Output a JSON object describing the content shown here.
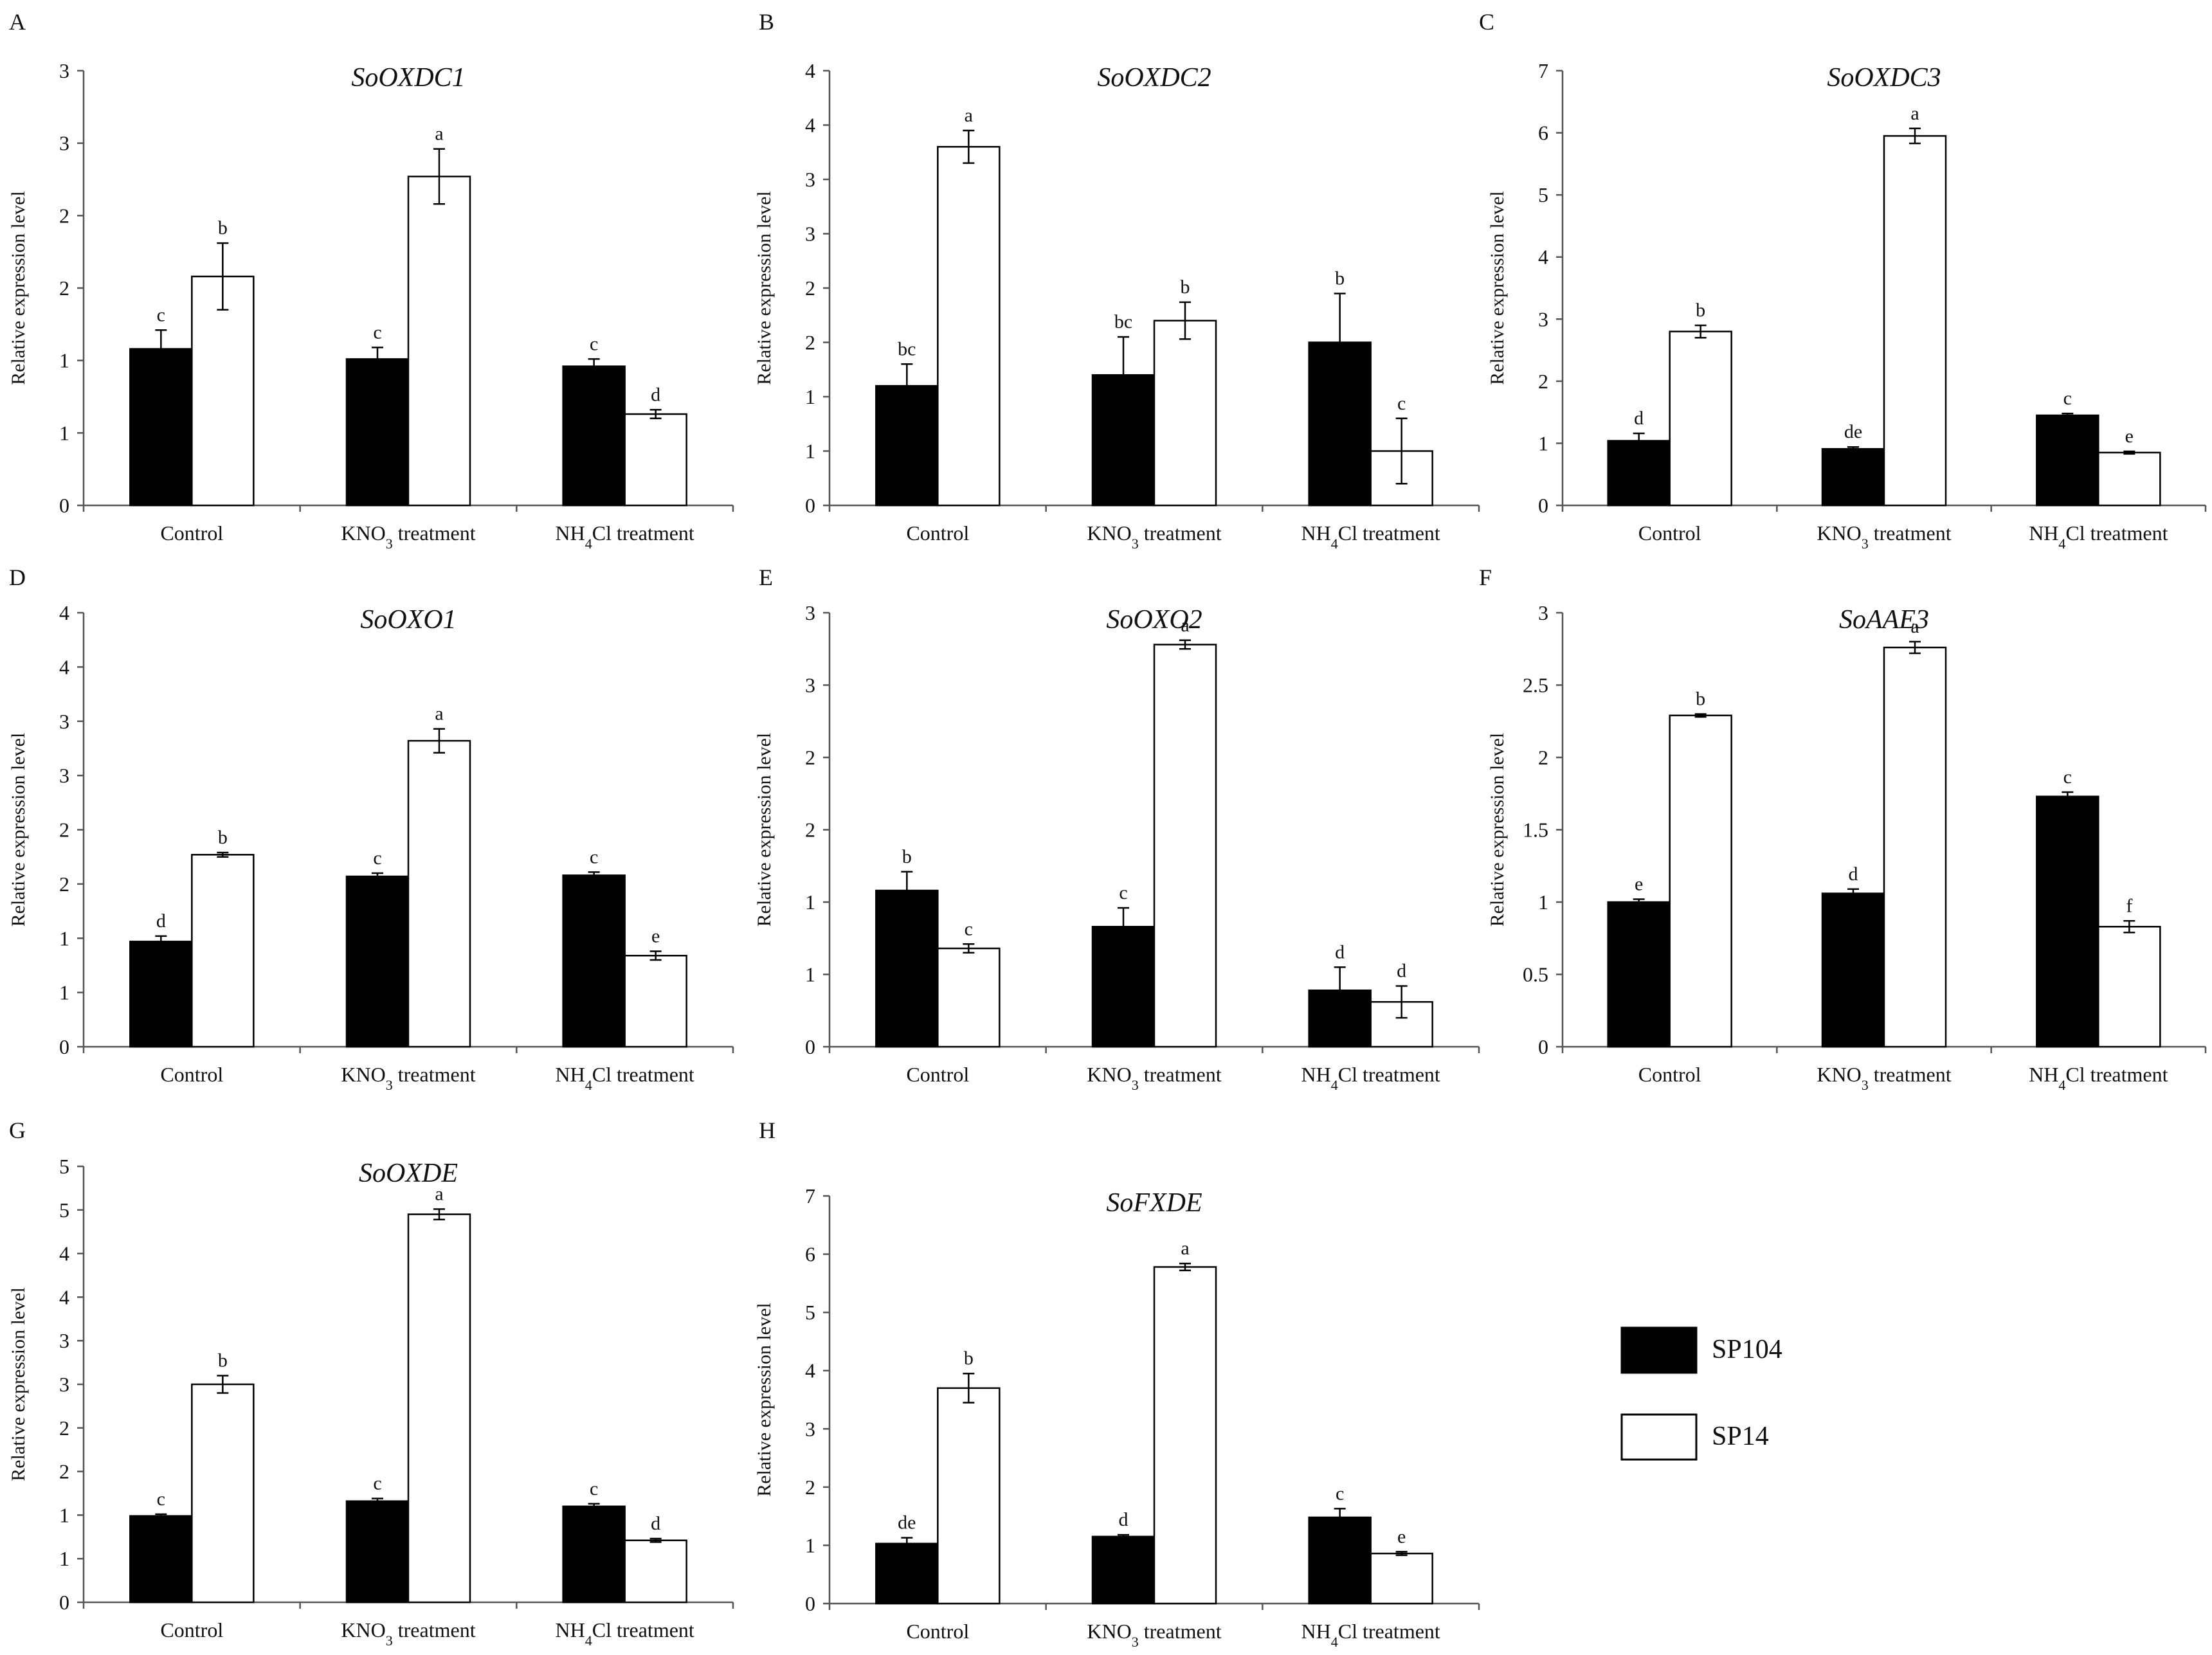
{
  "legend": {
    "series": [
      {
        "name": "SP104",
        "color": "#000000"
      },
      {
        "name": "SP14",
        "color": "#ffffff"
      }
    ]
  },
  "chart_data": [
    {
      "panel": "A",
      "type": "bar",
      "title": "SoOXDC1",
      "ylabel": "Relative expression level",
      "ylim": [
        0,
        3
      ],
      "yticks": [
        "0",
        "1",
        "1",
        "2",
        "2",
        "3",
        "3"
      ],
      "categories": [
        [
          "Control"
        ],
        [
          "KNO",
          "3",
          " treatment"
        ],
        [
          "NH",
          "4",
          "Cl treatment"
        ]
      ],
      "series": [
        {
          "name": "SP104",
          "values": [
            1.08,
            1.01,
            0.96
          ],
          "errors": [
            0.13,
            0.08,
            0.05
          ],
          "labels": [
            "c",
            "c",
            "c"
          ]
        },
        {
          "name": "SP14",
          "values": [
            1.58,
            2.27,
            0.63
          ],
          "errors": [
            0.23,
            0.19,
            0.03
          ],
          "labels": [
            "b",
            "a",
            "d"
          ]
        }
      ]
    },
    {
      "panel": "B",
      "type": "bar",
      "title": "SoOXDC2",
      "ylabel": "Relative expression level",
      "ylim": [
        0,
        4
      ],
      "yticks": [
        "0",
        "1",
        "1",
        "2",
        "2",
        "3",
        "3",
        "4",
        "4"
      ],
      "categories": [
        [
          "Control"
        ],
        [
          "KNO",
          "3",
          " treatment"
        ],
        [
          "NH",
          "4",
          "Cl treatment"
        ]
      ],
      "series": [
        {
          "name": "SP104",
          "values": [
            1.1,
            1.2,
            1.5
          ],
          "errors": [
            0.2,
            0.35,
            0.45
          ],
          "labels": [
            "bc",
            "bc",
            "b"
          ]
        },
        {
          "name": "SP14",
          "values": [
            3.3,
            1.7,
            0.5
          ],
          "errors": [
            0.15,
            0.17,
            0.3
          ],
          "labels": [
            "a",
            "b",
            "c"
          ]
        }
      ]
    },
    {
      "panel": "C",
      "type": "bar",
      "title": "SoOXDC3",
      "ylabel": "Relative expression level",
      "ylim": [
        0,
        7
      ],
      "yticks": [
        "0",
        "1",
        "2",
        "3",
        "4",
        "5",
        "6",
        "7"
      ],
      "categories": [
        [
          "Control"
        ],
        [
          "KNO",
          "3",
          " treatment"
        ],
        [
          "NH",
          "4",
          "Cl treatment"
        ]
      ],
      "series": [
        {
          "name": "SP104",
          "values": [
            1.04,
            0.91,
            1.45
          ],
          "errors": [
            0.12,
            0.03,
            0.03
          ],
          "labels": [
            "d",
            "de",
            "c"
          ]
        },
        {
          "name": "SP14",
          "values": [
            2.8,
            5.95,
            0.85
          ],
          "errors": [
            0.1,
            0.12,
            0.02
          ],
          "labels": [
            "b",
            "a",
            "e"
          ]
        }
      ]
    },
    {
      "panel": "D",
      "type": "bar",
      "title": "SoOXO1",
      "ylabel": "Relative expression level",
      "ylim": [
        0,
        4
      ],
      "yticks": [
        "0",
        "1",
        "1",
        "2",
        "2",
        "3",
        "3",
        "4",
        "4"
      ],
      "categories": [
        [
          "Control"
        ],
        [
          "KNO",
          "3",
          " treatment"
        ],
        [
          "NH",
          "4",
          "Cl treatment"
        ]
      ],
      "series": [
        {
          "name": "SP104",
          "values": [
            0.97,
            1.57,
            1.58
          ],
          "errors": [
            0.05,
            0.03,
            0.03
          ],
          "labels": [
            "d",
            "c",
            "c"
          ]
        },
        {
          "name": "SP14",
          "values": [
            1.77,
            2.82,
            0.84
          ],
          "errors": [
            0.02,
            0.11,
            0.04
          ],
          "labels": [
            "b",
            "a",
            "e"
          ]
        }
      ]
    },
    {
      "panel": "E",
      "type": "bar",
      "title": "SoOXO2",
      "ylabel": "Relative expression level",
      "ylim": [
        0,
        3
      ],
      "yticks": [
        "0",
        "1",
        "1",
        "2",
        "2",
        "3",
        "3"
      ],
      "categories": [
        [
          "Control"
        ],
        [
          "KNO",
          "3",
          " treatment"
        ],
        [
          "NH",
          "4",
          "Cl treatment"
        ]
      ],
      "series": [
        {
          "name": "SP104",
          "values": [
            1.08,
            0.83,
            0.39
          ],
          "errors": [
            0.13,
            0.13,
            0.16
          ],
          "labels": [
            "b",
            "c",
            "d"
          ]
        },
        {
          "name": "SP14",
          "values": [
            0.68,
            2.78,
            0.31
          ],
          "errors": [
            0.03,
            0.03,
            0.11
          ],
          "labels": [
            "c",
            "a",
            "d"
          ]
        }
      ]
    },
    {
      "panel": "F",
      "type": "bar",
      "title": "SoAAE3",
      "ylabel": "Relative expression level",
      "ylim": [
        0,
        3
      ],
      "yticks": [
        "0",
        "0.5",
        "1",
        "1.5",
        "2",
        "2.5",
        "3"
      ],
      "categories": [
        [
          "Control"
        ],
        [
          "KNO",
          "3",
          " treatment"
        ],
        [
          "NH",
          "4",
          "Cl treatment"
        ]
      ],
      "series": [
        {
          "name": "SP104",
          "values": [
            1.0,
            1.06,
            1.73
          ],
          "errors": [
            0.02,
            0.03,
            0.03
          ],
          "labels": [
            "e",
            "d",
            "c"
          ]
        },
        {
          "name": "SP14",
          "values": [
            2.29,
            2.76,
            0.83
          ],
          "errors": [
            0.01,
            0.04,
            0.04
          ],
          "labels": [
            "b",
            "a",
            "f"
          ]
        }
      ]
    },
    {
      "panel": "G",
      "type": "bar",
      "title": "SoOXDE",
      "ylabel": "Relative expression level",
      "ylim": [
        0,
        5
      ],
      "yticks": [
        "0",
        "1",
        "1",
        "2",
        "2",
        "3",
        "3",
        "4",
        "4",
        "5",
        "5"
      ],
      "categories": [
        [
          "Control"
        ],
        [
          "KNO",
          "3",
          " treatment"
        ],
        [
          "NH",
          "4",
          "Cl treatment"
        ]
      ],
      "series": [
        {
          "name": "SP104",
          "values": [
            0.99,
            1.16,
            1.1
          ],
          "errors": [
            0.02,
            0.03,
            0.03
          ],
          "labels": [
            "c",
            "c",
            "c"
          ]
        },
        {
          "name": "SP14",
          "values": [
            2.5,
            4.45,
            0.71
          ],
          "errors": [
            0.1,
            0.06,
            0.02
          ],
          "labels": [
            "b",
            "a",
            "d"
          ]
        }
      ]
    },
    {
      "panel": "H",
      "type": "bar",
      "title": "SoFXDE",
      "ylabel": "Relative expression level",
      "ylim": [
        0,
        7
      ],
      "yticks": [
        "0",
        "1",
        "2",
        "3",
        "4",
        "5",
        "6",
        "7"
      ],
      "categories": [
        [
          "Control"
        ],
        [
          "KNO",
          "3",
          " treatment"
        ],
        [
          "NH",
          "4",
          "Cl treatment"
        ]
      ],
      "series": [
        {
          "name": "SP104",
          "values": [
            1.03,
            1.15,
            1.48
          ],
          "errors": [
            0.1,
            0.03,
            0.15
          ],
          "labels": [
            "de",
            "d",
            "c"
          ]
        },
        {
          "name": "SP14",
          "values": [
            3.7,
            5.78,
            0.86
          ],
          "errors": [
            0.25,
            0.06,
            0.03
          ],
          "labels": [
            "b",
            "a",
            "e"
          ]
        }
      ]
    }
  ]
}
